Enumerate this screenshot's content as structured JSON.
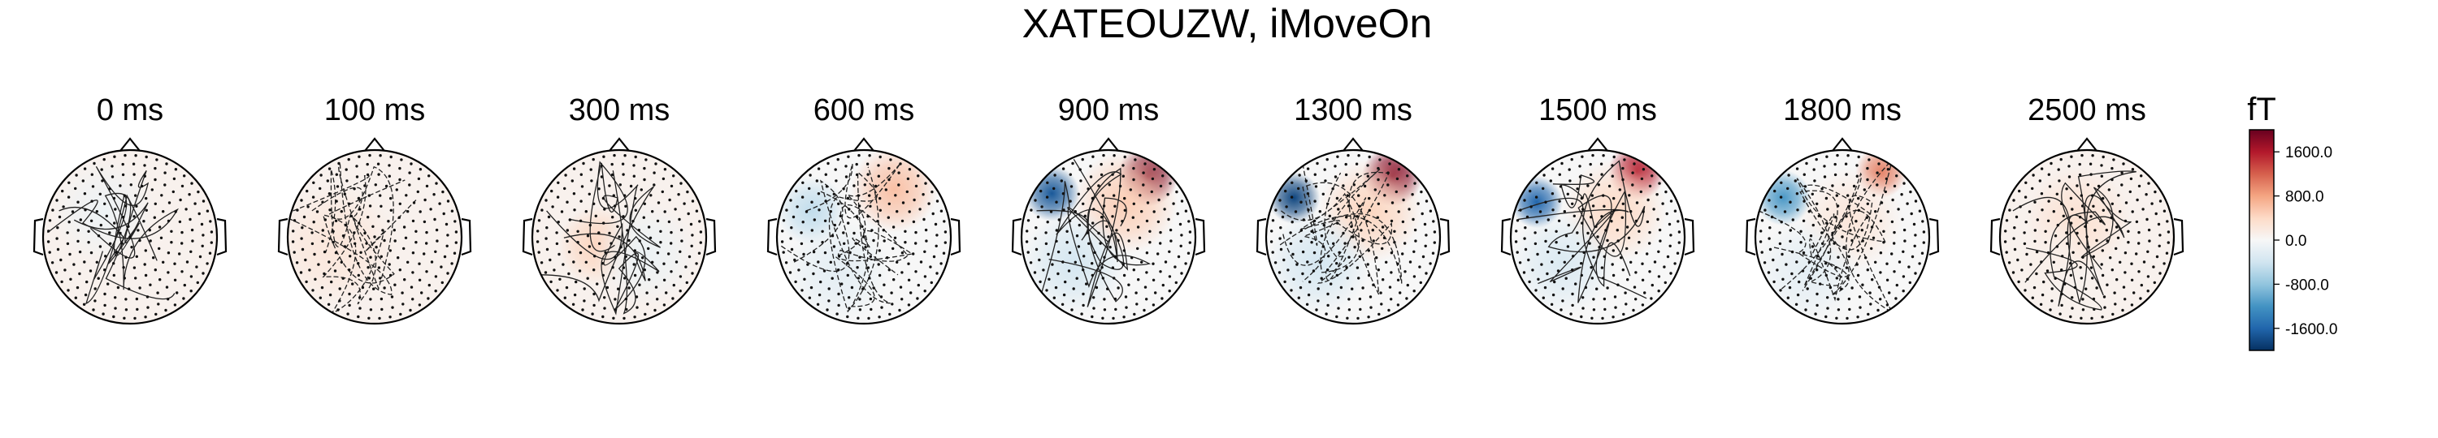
{
  "chart_data": {
    "type": "heatmap",
    "title": "XATEOUZW, iMoveOn",
    "panels": [
      {
        "label": "0 ms",
        "intensity": 0.06,
        "blobs": [
          {
            "dx": -0.3,
            "dy": -0.3,
            "sigma": 0.6,
            "value": -0.05
          }
        ]
      },
      {
        "label": "100 ms",
        "intensity": 0.12,
        "blobs": [
          {
            "dx": -0.45,
            "dy": 0.1,
            "sigma": 0.7,
            "value": 0.12
          }
        ]
      },
      {
        "label": "300 ms",
        "intensity": 0.18,
        "blobs": [
          {
            "dx": -0.25,
            "dy": 0.1,
            "sigma": 0.45,
            "value": 0.22
          },
          {
            "dx": 0.3,
            "dy": 0.2,
            "sigma": 0.6,
            "value": -0.06
          }
        ]
      },
      {
        "label": "600 ms",
        "intensity": 0.3,
        "blobs": [
          {
            "dx": 0.35,
            "dy": -0.55,
            "sigma": 0.5,
            "value": 0.3
          },
          {
            "dx": -0.6,
            "dy": -0.3,
            "sigma": 0.4,
            "value": -0.25
          },
          {
            "dx": -0.3,
            "dy": 0.4,
            "sigma": 0.6,
            "value": -0.1
          }
        ]
      },
      {
        "label": "900 ms",
        "intensity": 0.9,
        "blobs": [
          {
            "dx": 0.45,
            "dy": -0.7,
            "sigma": 0.35,
            "value": 0.95
          },
          {
            "dx": 0.2,
            "dy": -0.4,
            "sigma": 0.6,
            "value": 0.25
          },
          {
            "dx": -0.65,
            "dy": -0.5,
            "sigma": 0.32,
            "value": -0.85
          },
          {
            "dx": -0.4,
            "dy": 0.3,
            "sigma": 0.6,
            "value": -0.18
          }
        ]
      },
      {
        "label": "1300 ms",
        "intensity": 0.9,
        "blobs": [
          {
            "dx": 0.45,
            "dy": -0.7,
            "sigma": 0.35,
            "value": 0.92
          },
          {
            "dx": 0.2,
            "dy": -0.3,
            "sigma": 0.6,
            "value": 0.22
          },
          {
            "dx": -0.68,
            "dy": -0.45,
            "sigma": 0.3,
            "value": -0.92
          },
          {
            "dx": -0.4,
            "dy": 0.3,
            "sigma": 0.6,
            "value": -0.18
          }
        ]
      },
      {
        "label": "1500 ms",
        "intensity": 0.8,
        "blobs": [
          {
            "dx": 0.45,
            "dy": -0.75,
            "sigma": 0.33,
            "value": 0.8
          },
          {
            "dx": 0.2,
            "dy": -0.3,
            "sigma": 0.6,
            "value": 0.2
          },
          {
            "dx": -0.7,
            "dy": -0.4,
            "sigma": 0.3,
            "value": -0.8
          },
          {
            "dx": -0.4,
            "dy": 0.3,
            "sigma": 0.6,
            "value": -0.15
          }
        ]
      },
      {
        "label": "1800 ms",
        "intensity": 0.55,
        "blobs": [
          {
            "dx": 0.45,
            "dy": -0.75,
            "sigma": 0.3,
            "value": 0.5
          },
          {
            "dx": 0.1,
            "dy": -0.2,
            "sigma": 0.6,
            "value": 0.12
          },
          {
            "dx": -0.68,
            "dy": -0.45,
            "sigma": 0.32,
            "value": -0.58
          },
          {
            "dx": -0.4,
            "dy": 0.4,
            "sigma": 0.6,
            "value": -0.1
          }
        ]
      },
      {
        "label": "2500 ms",
        "intensity": 0.15,
        "blobs": [
          {
            "dx": -0.1,
            "dy": -0.2,
            "sigma": 0.6,
            "value": 0.15
          },
          {
            "dx": -0.4,
            "dy": 0.2,
            "sigma": 0.4,
            "value": 0.06
          }
        ]
      }
    ],
    "colorbar": {
      "unit": "fT",
      "vmin": -2000,
      "vmax": 2000,
      "ticks": [
        1600,
        800,
        0,
        -800,
        -1600
      ],
      "tick_labels": [
        "1600.0",
        "800.0",
        "0.0",
        "-800.0",
        "-1600.0"
      ],
      "colormap": "RdBu_r"
    }
  }
}
